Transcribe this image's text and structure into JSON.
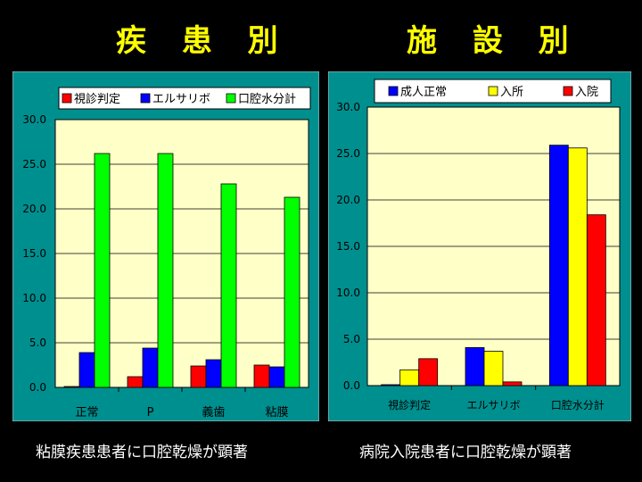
{
  "titles": {
    "left": "疾 患 別",
    "right": "施 設 別"
  },
  "captions": {
    "left": "粘膜疾患患者に口腔乾燥が顕著",
    "right": "病院入院患者に口腔乾燥が顕著"
  },
  "colors": {
    "red": "#ff0000",
    "blue": "#0000ff",
    "green": "#00ff00",
    "yellow": "#ffff00",
    "teal": "#008f8f",
    "plot": "#ffffc8"
  },
  "chart_data": [
    {
      "type": "bar",
      "title": "疾 患 別",
      "categories": [
        "正常",
        "P",
        "義歯",
        "粘膜"
      ],
      "series": [
        {
          "name": "視診判定",
          "color": "#ff0000",
          "values": [
            0.1,
            1.2,
            2.4,
            2.5
          ]
        },
        {
          "name": "エルサリボ",
          "color": "#0000ff",
          "values": [
            3.9,
            4.4,
            3.1,
            2.3
          ]
        },
        {
          "name": "口腔水分計",
          "color": "#00ff00",
          "values": [
            26.2,
            26.2,
            22.8,
            21.3
          ]
        }
      ],
      "ylim": [
        0,
        30
      ],
      "yticks": [
        "0.0",
        "5.0",
        "10.0",
        "15.0",
        "20.0",
        "25.0",
        "30.0"
      ],
      "grid": true,
      "legend": "top"
    },
    {
      "type": "bar",
      "title": "施 設 別",
      "categories": [
        "視診判定",
        "エルサリボ",
        "口腔水分計"
      ],
      "series": [
        {
          "name": "成人正常",
          "color": "#0000ff",
          "values": [
            0.1,
            4.1,
            25.9
          ]
        },
        {
          "name": "入所",
          "color": "#ffff00",
          "values": [
            1.7,
            3.7,
            25.6
          ]
        },
        {
          "name": "入院",
          "color": "#ff0000",
          "values": [
            2.9,
            0.4,
            18.4
          ]
        }
      ],
      "ylim": [
        0,
        30
      ],
      "yticks": [
        "0.0",
        "5.0",
        "10.0",
        "15.0",
        "20.0",
        "25.0",
        "30.0"
      ],
      "grid": true,
      "legend": "top"
    }
  ]
}
